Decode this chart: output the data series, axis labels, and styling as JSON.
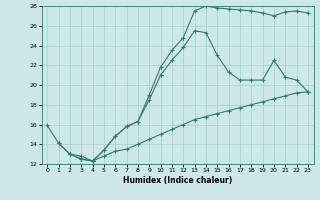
{
  "xlabel": "Humidex (Indice chaleur)",
  "xlim": [
    -0.5,
    23.5
  ],
  "ylim": [
    12,
    28
  ],
  "xticks": [
    0,
    1,
    2,
    3,
    4,
    5,
    6,
    7,
    8,
    9,
    10,
    11,
    12,
    13,
    14,
    15,
    16,
    17,
    18,
    19,
    20,
    21,
    22,
    23
  ],
  "yticks": [
    12,
    14,
    16,
    18,
    20,
    22,
    24,
    26,
    28
  ],
  "background_color": "#cce8e8",
  "grid_color": "#aacece",
  "line_color": "#2e7d6e",
  "curve1_x": [
    0,
    1,
    2,
    3,
    4,
    5,
    6,
    7,
    8,
    9,
    10,
    11,
    12,
    13,
    14,
    15,
    16,
    17,
    18,
    19,
    20,
    21,
    22,
    23
  ],
  "curve1_y": [
    15.9,
    14.1,
    13.0,
    12.5,
    12.3,
    13.4,
    14.8,
    15.8,
    16.3,
    19.0,
    21.8,
    23.5,
    24.8,
    27.5,
    28.0,
    27.8,
    27.7,
    27.6,
    27.5,
    27.3,
    27.0,
    27.4,
    27.5,
    27.3
  ],
  "curve2_x": [
    2,
    3,
    4,
    5,
    6,
    7,
    8,
    9,
    10,
    11,
    12,
    13,
    14,
    15,
    16,
    17,
    18,
    19,
    20,
    21,
    22,
    23
  ],
  "curve2_y": [
    13.0,
    12.5,
    12.3,
    13.4,
    14.8,
    15.8,
    16.3,
    18.5,
    21.0,
    22.5,
    23.8,
    25.5,
    25.3,
    23.0,
    21.3,
    20.5,
    20.5,
    20.5,
    22.5,
    20.8,
    20.5,
    19.3
  ],
  "curve3_x": [
    1,
    2,
    3,
    4,
    5,
    6,
    7,
    8,
    9,
    10,
    11,
    12,
    13,
    14,
    15,
    16,
    17,
    18,
    19,
    20,
    21,
    22,
    23
  ],
  "curve3_y": [
    14.1,
    13.0,
    12.8,
    12.3,
    12.8,
    13.3,
    13.5,
    14.0,
    14.5,
    15.0,
    15.5,
    16.0,
    16.5,
    16.8,
    17.1,
    17.4,
    17.7,
    18.0,
    18.3,
    18.6,
    18.9,
    19.2,
    19.3
  ]
}
